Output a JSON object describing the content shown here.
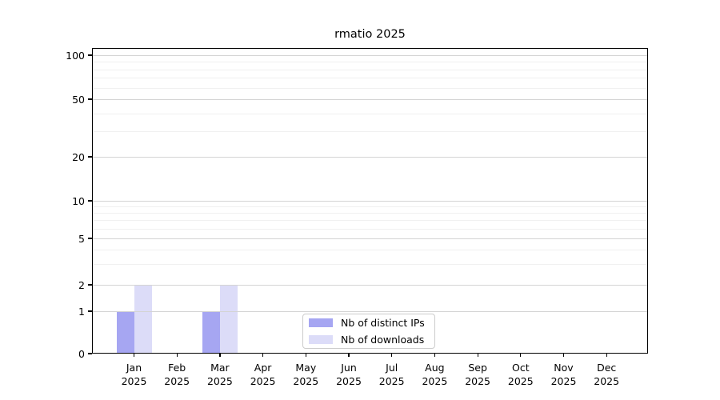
{
  "chart_data": {
    "type": "bar",
    "title": "rmatio 2025",
    "categories": [
      "Jan",
      "Feb",
      "Mar",
      "Apr",
      "May",
      "Jun",
      "Jul",
      "Aug",
      "Sep",
      "Oct",
      "Nov",
      "Dec"
    ],
    "category_year": "2025",
    "series": [
      {
        "name": "Nb of distinct IPs",
        "color": "#a6a6f2",
        "values": [
          1,
          0,
          1,
          0,
          0,
          0,
          0,
          0,
          0,
          0,
          0,
          0
        ]
      },
      {
        "name": "Nb of downloads",
        "color": "#dcdcf8",
        "values": [
          2,
          0,
          2,
          0,
          0,
          0,
          0,
          0,
          0,
          0,
          0,
          0
        ]
      }
    ],
    "y_axis": {
      "scale": "symlog",
      "ticks": [
        0,
        1,
        2,
        5,
        10,
        20,
        50,
        100
      ],
      "minor_gridlines": [
        3,
        4,
        6,
        7,
        8,
        9,
        30,
        40,
        60,
        70,
        80,
        90
      ],
      "range": [
        0,
        110
      ]
    },
    "xlabel": "",
    "ylabel": "",
    "grid": "horizontal",
    "legend_position": "inside-bottom-center"
  },
  "colors": {
    "bar_distinct_ips": "#a6a6f2",
    "bar_downloads": "#dcdcf8",
    "grid_major": "#d4d4d4",
    "grid_minor": "#f0f0f0",
    "axis": "#000000",
    "legend_border": "#cccccc",
    "background": "#ffffff",
    "text": "#000000"
  }
}
